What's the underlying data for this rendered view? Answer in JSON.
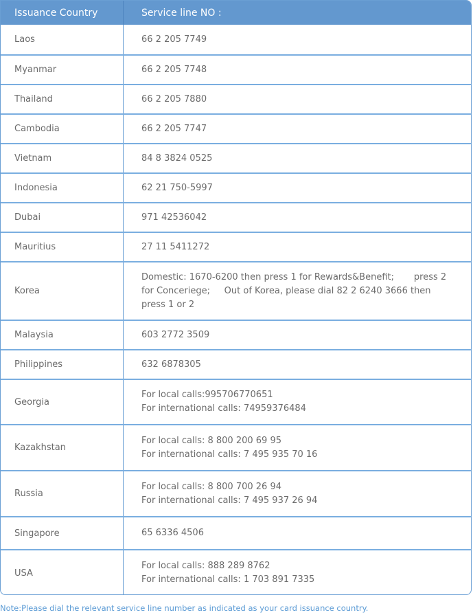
{
  "header": {
    "country": "Issuance Country",
    "service": "Service line  NO :"
  },
  "rows": [
    {
      "country": "Laos",
      "lines": [
        "66 2 205 7749"
      ]
    },
    {
      "country": "Myanmar",
      "lines": [
        "66 2 205 7748"
      ]
    },
    {
      "country": "Thailand",
      "lines": [
        "66 2 205 7880"
      ]
    },
    {
      "country": "Cambodia",
      "lines": [
        "66 2 205 7747"
      ]
    },
    {
      "country": "Vietnam",
      "lines": [
        "84 8 3824 0525"
      ]
    },
    {
      "country": "Indonesia",
      "lines": [
        "62 21 750-5997"
      ]
    },
    {
      "country": "Dubai",
      "lines": [
        "971 42536042"
      ]
    },
    {
      "country": "Mauritius",
      "lines": [
        "27 11 5411272"
      ]
    },
    {
      "country": "Korea",
      "lines": [
        "Domestic: 1670-6200 then press 1 for Rewards&Benefit;       press 2 for Conceriege;     Out of Korea, please dial 82 2 6240 3666 then press 1 or 2"
      ]
    },
    {
      "country": "Malaysia",
      "lines": [
        "603 2772 3509"
      ]
    },
    {
      "country": "Philippines",
      "lines": [
        "632 6878305"
      ]
    },
    {
      "country": "Georgia",
      "lines": [
        "For local calls:995706770651",
        "For international calls: 74959376484"
      ]
    },
    {
      "country": "Kazakhstan",
      "lines": [
        "For local calls: 8 800 200 69 95",
        "For international calls: 7 495 935 70 16"
      ]
    },
    {
      "country": "Russia",
      "lines": [
        "For local calls: 8 800 700 26 94",
        "For international calls: 7 495 937 26 94"
      ]
    },
    {
      "country": "Singapore",
      "lines": [
        "65 6336 4506"
      ]
    },
    {
      "country": "USA",
      "lines": [
        "For local calls: 888 289 8762",
        "For international calls: 1 703 891 7335"
      ]
    }
  ],
  "note": "Note:Please dial the relevant service line number as indicated as your card issuance country.",
  "colors": {
    "header_bg": "#6398cf",
    "border": "#6a9fd4",
    "note": "#5b9bd5"
  }
}
